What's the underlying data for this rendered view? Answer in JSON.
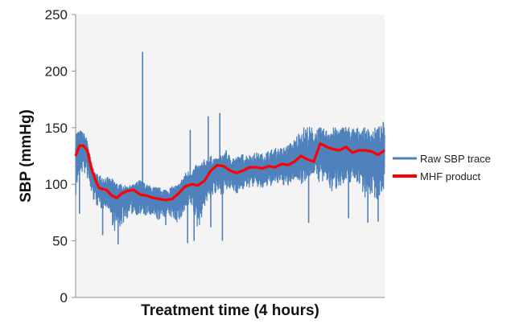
{
  "chart_data": {
    "type": "line",
    "title": "",
    "xlabel": "Treatment time (4 hours)",
    "ylabel": "SBP (mmHg)",
    "ylim": [
      0,
      250
    ],
    "yticks": [
      0,
      50,
      100,
      150,
      200,
      250
    ],
    "xlim": [
      0,
      240
    ],
    "x_unit": "minutes",
    "grid": false,
    "legend_position": "right",
    "colors": {
      "raw": "#4F81BD",
      "mhf": "#FF0000"
    },
    "series": [
      {
        "name": "Raw SBP trace",
        "color": "#4F81BD",
        "style": "noisy-band",
        "x": [
          0,
          3,
          6,
          9,
          12,
          15,
          20,
          25,
          30,
          35,
          40,
          45,
          50,
          55,
          60,
          65,
          70,
          75,
          80,
          85,
          90,
          95,
          100,
          105,
          110,
          115,
          120,
          125,
          130,
          135,
          140,
          145,
          150,
          155,
          160,
          165,
          170,
          175,
          180,
          185,
          190,
          195,
          200,
          205,
          210,
          215,
          220,
          225,
          230,
          235,
          240
        ],
        "upper": [
          148,
          148,
          146,
          140,
          120,
          110,
          108,
          106,
          104,
          100,
          98,
          100,
          104,
          100,
          98,
          97,
          96,
          98,
          100,
          110,
          114,
          118,
          122,
          125,
          122,
          128,
          126,
          124,
          127,
          126,
          128,
          127,
          130,
          132,
          132,
          135,
          140,
          150,
          152,
          150,
          150,
          148,
          150,
          150,
          152,
          150,
          150,
          150,
          148,
          152,
          150
        ],
        "lower": [
          88,
          110,
          110,
          105,
          90,
          82,
          78,
          80,
          58,
          62,
          70,
          74,
          72,
          72,
          70,
          68,
          72,
          70,
          65,
          75,
          80,
          58,
          80,
          88,
          90,
          92,
          95,
          92,
          95,
          97,
          98,
          95,
          98,
          100,
          100,
          97,
          105,
          100,
          105,
          110,
          100,
          100,
          90,
          100,
          95,
          105,
          100,
          88,
          90,
          85,
          98
        ],
        "spikes": [
          {
            "x": 3,
            "y": 74
          },
          {
            "x": 21,
            "y": 55
          },
          {
            "x": 33,
            "y": 47
          },
          {
            "x": 52,
            "y": 217
          },
          {
            "x": 53,
            "y": 74
          },
          {
            "x": 58,
            "y": 80
          },
          {
            "x": 70,
            "y": 64
          },
          {
            "x": 87,
            "y": 48
          },
          {
            "x": 89,
            "y": 148
          },
          {
            "x": 92,
            "y": 50
          },
          {
            "x": 103,
            "y": 160
          },
          {
            "x": 105,
            "y": 62
          },
          {
            "x": 112,
            "y": 163
          },
          {
            "x": 114,
            "y": 50
          },
          {
            "x": 117,
            "y": 130
          },
          {
            "x": 181,
            "y": 66
          },
          {
            "x": 212,
            "y": 70
          },
          {
            "x": 227,
            "y": 66
          },
          {
            "x": 235,
            "y": 67
          },
          {
            "x": 239,
            "y": 155
          }
        ]
      },
      {
        "name": "MHF product",
        "color": "#FF0000",
        "style": "line",
        "x": [
          0,
          3,
          6,
          9,
          12,
          15,
          18,
          20,
          24,
          28,
          32,
          36,
          40,
          45,
          50,
          55,
          60,
          65,
          70,
          75,
          80,
          85,
          90,
          95,
          100,
          105,
          110,
          115,
          120,
          125,
          130,
          135,
          140,
          145,
          150,
          155,
          160,
          165,
          170,
          175,
          180,
          185,
          190,
          195,
          200,
          205,
          210,
          215,
          220,
          225,
          230,
          235,
          240
        ],
        "y": [
          125,
          134,
          134,
          130,
          115,
          105,
          97,
          96,
          95,
          90,
          88,
          92,
          94,
          95,
          91,
          90,
          88,
          87,
          86,
          87,
          92,
          98,
          100,
          99,
          103,
          112,
          117,
          116,
          112,
          110,
          112,
          115,
          115,
          114,
          116,
          115,
          118,
          117,
          120,
          125,
          122,
          120,
          136,
          133,
          131,
          130,
          133,
          128,
          130,
          130,
          129,
          126,
          130
        ]
      }
    ]
  }
}
